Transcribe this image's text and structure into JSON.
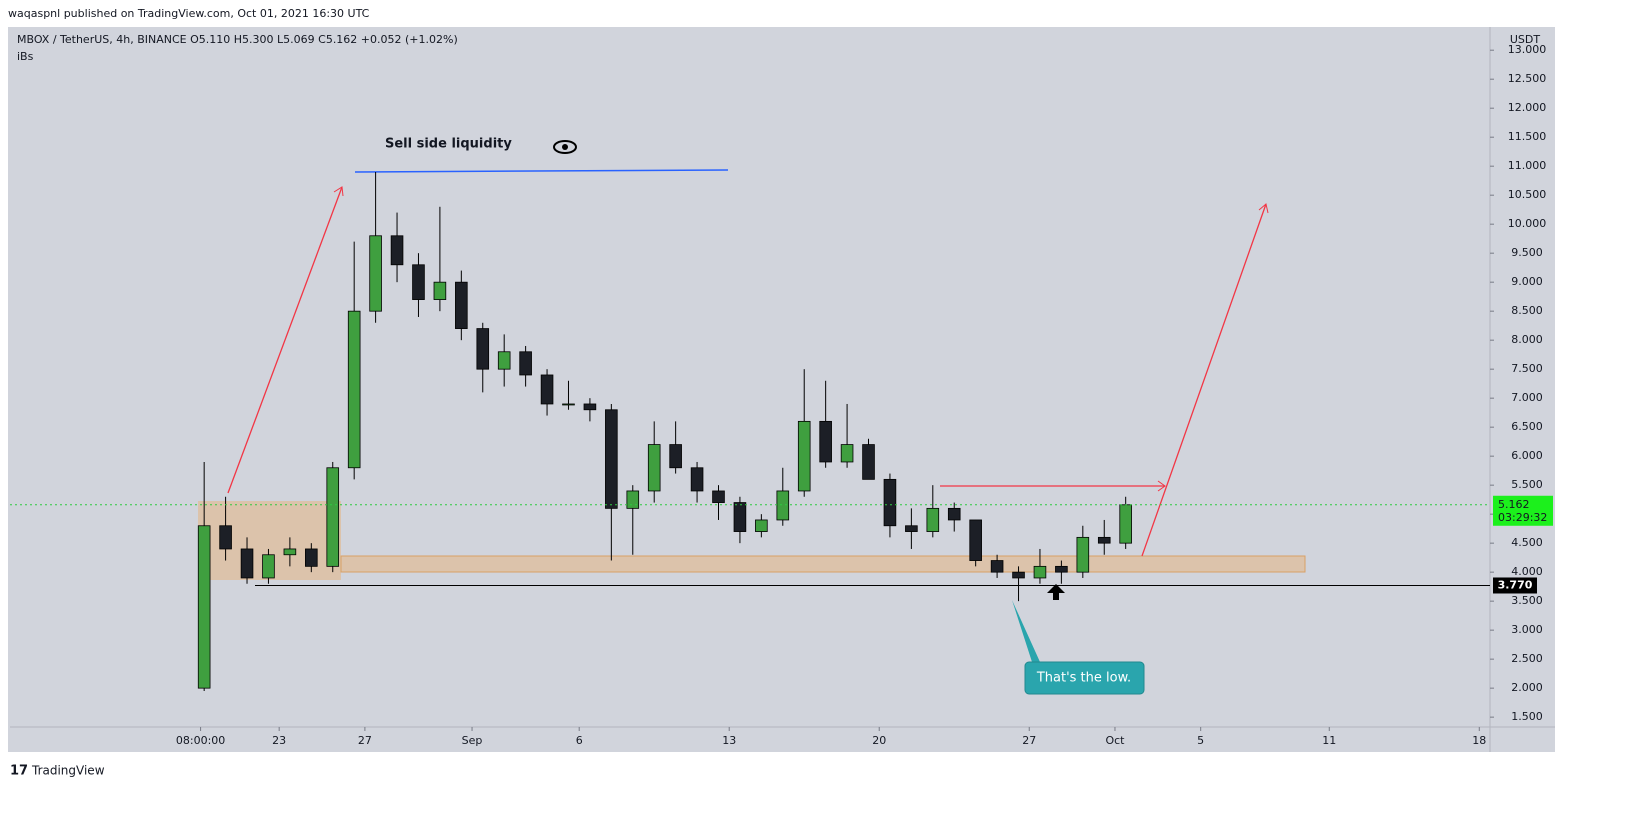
{
  "header": {
    "published": "waqaspnl published on TradingView.com, Oct 01, 2021 16:30 UTC",
    "brand": "TradingView"
  },
  "chart_data": {
    "type": "candlestick",
    "title": "MBOX / TetherUS, 4h, BINANCE  O5.110  H5.300  L5.069  C5.162  +0.052 (+1.02%)",
    "indicator": "iBs",
    "currency": "USDT",
    "annotations": [
      "Sell side liquidity",
      "That's the low."
    ],
    "x": [
      19.5,
      20.5,
      21.5,
      22.5,
      23.5,
      24.5,
      25.5,
      26.5,
      27.5,
      28.5,
      29.5,
      30.5,
      31.5,
      32.5,
      33.5,
      34.5,
      35.5,
      36.5,
      37.5,
      38.5,
      39.5,
      40.5,
      41.5,
      42.5,
      43.5,
      44.5,
      45.5,
      46.5,
      47.5,
      48.5,
      49.5,
      50.5,
      51.5,
      52.5,
      53.5,
      54.5,
      55.5,
      56.5,
      57.5,
      58.5,
      59.5,
      60.5,
      61.5,
      62.5
    ],
    "open": [
      2.0,
      4.8,
      4.4,
      3.9,
      4.3,
      4.4,
      4.1,
      5.8,
      8.5,
      9.8,
      9.3,
      8.7,
      9.0,
      8.2,
      7.5,
      7.8,
      7.4,
      6.9,
      6.9,
      6.8,
      5.1,
      5.4,
      6.2,
      5.8,
      5.4,
      5.2,
      4.7,
      4.9,
      5.4,
      6.6,
      5.9,
      6.2,
      5.6,
      4.8,
      4.7,
      5.1,
      4.9,
      4.2,
      4.0,
      3.9,
      4.1,
      4.0,
      4.6,
      4.5
    ],
    "high": [
      5.9,
      5.3,
      4.6,
      4.4,
      4.6,
      4.5,
      5.9,
      9.7,
      10.9,
      10.2,
      9.5,
      10.3,
      9.2,
      8.3,
      8.1,
      7.9,
      7.5,
      7.3,
      7.0,
      6.9,
      5.5,
      6.6,
      6.6,
      5.9,
      5.5,
      5.3,
      5.0,
      5.8,
      7.5,
      7.3,
      6.9,
      6.3,
      5.7,
      5.1,
      5.5,
      5.2,
      4.9,
      4.3,
      4.1,
      4.4,
      4.2,
      4.8,
      4.9,
      5.3
    ],
    "low": [
      1.95,
      4.2,
      3.8,
      3.8,
      4.1,
      4.0,
      4.0,
      5.6,
      8.3,
      9.0,
      8.4,
      8.5,
      8.0,
      7.1,
      7.2,
      7.2,
      6.7,
      6.8,
      6.6,
      4.2,
      4.3,
      5.2,
      5.7,
      5.2,
      4.9,
      4.5,
      4.6,
      4.8,
      5.3,
      5.8,
      5.8,
      5.6,
      4.6,
      4.4,
      4.6,
      4.7,
      4.1,
      3.9,
      3.5,
      3.8,
      3.8,
      3.9,
      4.3,
      4.4
    ],
    "close": [
      4.8,
      4.4,
      3.9,
      4.3,
      4.4,
      4.1,
      5.8,
      8.5,
      9.8,
      9.3,
      8.7,
      9.0,
      8.2,
      7.5,
      7.8,
      7.4,
      6.9,
      6.9,
      6.8,
      5.1,
      5.4,
      6.2,
      5.8,
      5.4,
      5.2,
      4.7,
      4.9,
      5.4,
      6.6,
      5.9,
      6.2,
      5.6,
      4.8,
      4.7,
      5.1,
      4.9,
      4.2,
      4.0,
      3.9,
      4.1,
      4.0,
      4.6,
      4.5,
      5.162
    ],
    "up_color": "#3f9f3f",
    "down_color": "#1c1f26",
    "last_price": 5.162,
    "countdown": "03:29:32",
    "level": {
      "value": 3.77,
      "label": "3.770"
    },
    "xlim": [
      10.44,
      79.5
    ],
    "xticks": [
      {
        "value": 19.333,
        "label": "08:00:00"
      },
      23,
      27,
      {
        "value": 32,
        "label": "Sep"
      },
      {
        "value": 37,
        "label": "6"
      },
      {
        "value": 44,
        "label": "13"
      },
      {
        "value": 51,
        "label": "20"
      },
      {
        "value": 58,
        "label": "27"
      },
      {
        "value": 62,
        "label": "Oct"
      },
      {
        "value": 66,
        "label": "5"
      },
      {
        "value": 72,
        "label": "11"
      },
      {
        "value": 79,
        "label": "18"
      }
    ],
    "ylim": [
      1.33,
      13.4
    ],
    "yticks": [
      {
        "value": 1.5,
        "label": "1.500"
      },
      {
        "value": 2,
        "label": "2.000"
      },
      {
        "value": 2.5,
        "label": "2.500"
      },
      {
        "value": 3,
        "label": "3.000"
      },
      {
        "value": 3.5,
        "label": "3.500"
      },
      {
        "value": 4,
        "label": "4.000"
      },
      {
        "value": 4.5,
        "label": "4.500"
      },
      {
        "value": 5,
        "label": "5.000"
      },
      {
        "value": 5.5,
        "label": "5.500"
      },
      {
        "value": 6,
        "label": "6.000"
      },
      {
        "value": 6.5,
        "label": "6.500"
      },
      {
        "value": 7,
        "label": "7.000"
      },
      {
        "value": 7.5,
        "label": "7.500"
      },
      {
        "value": 8,
        "label": "8.000"
      },
      {
        "value": 8.5,
        "label": "8.500"
      },
      {
        "value": 9,
        "label": "9.000"
      },
      {
        "value": 9.5,
        "label": "9.500"
      },
      {
        "value": 10,
        "label": "10.000"
      },
      {
        "value": 10.5,
        "label": "10.500"
      },
      {
        "value": 11,
        "label": "11.000"
      },
      {
        "value": 11.5,
        "label": "11.500"
      },
      {
        "value": 12,
        "label": "12.000"
      },
      {
        "value": 12.5,
        "label": "12.500"
      },
      {
        "value": 13,
        "label": "13.000"
      }
    ]
  }
}
